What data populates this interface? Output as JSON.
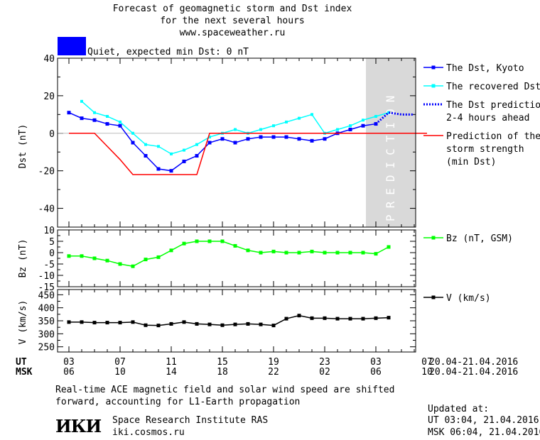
{
  "header": {
    "title_lines": [
      "Forecast of geomagnetic storm and Dst index",
      "for the next several hours",
      "www.spaceweather.ru"
    ],
    "status_text": "Quiet, expected min Dst: 0 nT",
    "status_color": "#0000ff"
  },
  "prediction_label": "PREDICTION",
  "colors": {
    "dst_kyoto": "#0000ff",
    "dst_recovered": "#00ffff",
    "dst_prediction": "#0000ff",
    "storm_strength": "#ff0000",
    "bz": "#00ff00",
    "v": "#000000",
    "prediction_band": "#d9d9d9"
  },
  "axes": {
    "ut_label": "UT",
    "msk_label": "MSK",
    "ut_ticks": [
      "03",
      "07",
      "11",
      "15",
      "19",
      "23",
      "03",
      "07"
    ],
    "msk_ticks": [
      "06",
      "10",
      "14",
      "18",
      "22",
      "02",
      "06",
      "10"
    ],
    "date_range": "20.04-21.04.2016"
  },
  "chart_data": [
    {
      "type": "line",
      "ylabel": "Dst (nT)",
      "ylim": [
        -50,
        40
      ],
      "yticks": [
        40,
        20,
        0,
        -20,
        -40
      ],
      "x_units": "hours from 03 UT, 20.04.2016",
      "xlim": [
        0,
        28
      ],
      "series": [
        {
          "name": "The Dst, Kyoto",
          "x": [
            0,
            1,
            2,
            3,
            4,
            5,
            6,
            7,
            8,
            9,
            10,
            11,
            12,
            13,
            14,
            15,
            16,
            17,
            18,
            19,
            20,
            21,
            22,
            23,
            24
          ],
          "y": [
            11,
            8,
            7,
            5,
            4,
            -5,
            -12,
            -19,
            -20,
            -15,
            -12,
            -5,
            -3,
            -5,
            -3,
            -2,
            -2,
            -2,
            -3,
            -4,
            -3,
            0,
            2,
            4,
            5
          ]
        },
        {
          "name": "The recovered Dst",
          "x": [
            1,
            2,
            3,
            4,
            5,
            6,
            7,
            8,
            9,
            10,
            11,
            12,
            13,
            14,
            15,
            16,
            17,
            18,
            19,
            20,
            21,
            22,
            23,
            24,
            25
          ],
          "y": [
            17,
            11,
            9,
            6,
            0,
            -6,
            -7,
            -11,
            -9,
            -6,
            -2,
            0,
            2,
            0,
            2,
            4,
            6,
            8,
            10,
            0,
            2,
            4,
            7,
            9,
            11
          ]
        },
        {
          "name": "The Dst prediction 2-4 hours ahead",
          "x": [
            24,
            25,
            26,
            27
          ],
          "y": [
            5,
            11,
            10,
            10
          ]
        },
        {
          "name": "Prediction of the storm strength (min Dst)",
          "x": [
            0,
            2,
            3,
            4,
            5,
            10,
            11,
            28
          ],
          "y": [
            0,
            0,
            -7,
            -14,
            -22,
            -22,
            0,
            0
          ]
        }
      ]
    },
    {
      "type": "line",
      "ylabel": "Bz (nT)",
      "ylim": [
        -15,
        10
      ],
      "yticks": [
        10,
        5,
        0,
        -5,
        -10,
        -15
      ],
      "series": [
        {
          "name": "Bz (nT, GSM)",
          "x": [
            0,
            1,
            2,
            3,
            4,
            5,
            6,
            7,
            8,
            9,
            10,
            11,
            12,
            13,
            14,
            15,
            16,
            17,
            18,
            19,
            20,
            21,
            22,
            23,
            24,
            25
          ],
          "y": [
            -1.5,
            -1.5,
            -2.5,
            -3.5,
            -5,
            -6,
            -3,
            -2,
            1,
            4,
            5,
            5,
            5,
            3,
            1,
            0,
            0.5,
            0,
            0,
            0.5,
            0,
            0,
            0,
            0,
            -0.5,
            2.5
          ]
        }
      ]
    },
    {
      "type": "line",
      "ylabel": "V (km/s)",
      "ylim": [
        230,
        470
      ],
      "yticks": [
        450,
        400,
        350,
        300,
        250
      ],
      "series": [
        {
          "name": "V (km/s)",
          "x": [
            0,
            1,
            2,
            3,
            4,
            5,
            6,
            7,
            8,
            9,
            10,
            11,
            12,
            13,
            14,
            15,
            16,
            17,
            18,
            19,
            20,
            21,
            22,
            23,
            24,
            25
          ],
          "y": [
            345,
            345,
            343,
            343,
            343,
            345,
            333,
            332,
            338,
            345,
            338,
            336,
            333,
            336,
            338,
            336,
            332,
            358,
            370,
            360,
            360,
            358,
            358,
            358,
            360,
            362
          ]
        }
      ]
    }
  ],
  "footer": {
    "note_line1": "Real-time ACE magnetic field and solar wind speed are shifted",
    "note_line2": "forward, accounting for L1-Earth propagation",
    "logo_text": "ИКИ",
    "institute": "Space Research Institute RAS",
    "site": "iki.cosmos.ru",
    "updated_label": "Updated at:",
    "updated_ut": "UT  03:04, 21.04.2016",
    "updated_msk": "MSK 06:04, 21.04.2016"
  }
}
